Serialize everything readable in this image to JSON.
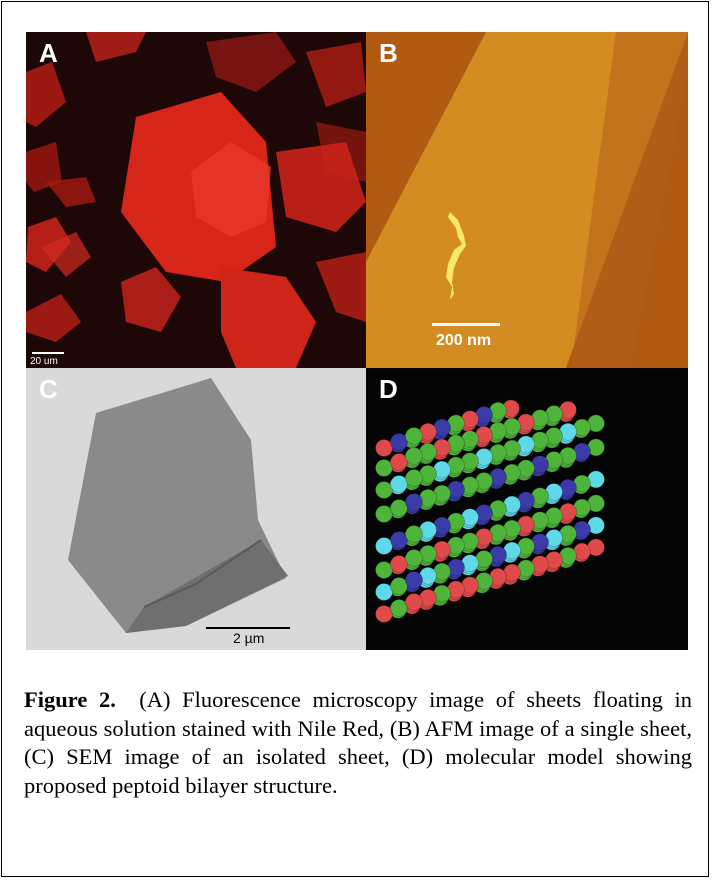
{
  "panels": {
    "a": {
      "letter": "A",
      "scale_label": "20 um"
    },
    "b": {
      "letter": "B",
      "scale_label": "200 nm"
    },
    "c": {
      "letter": "C",
      "scale_label": "2 µm"
    },
    "d": {
      "letter": "D"
    }
  },
  "caption": {
    "label": "Figure 2.",
    "text": "(A) Fluorescence microscopy image of sheets floating in aqueous solution stained with Nile Red, (B) AFM image of a single sheet, (C) SEM image of an isolated sheet, (D) molecular model showing proposed peptoid bilayer structure."
  },
  "colors": {
    "frame": "#000000",
    "fluorescence_bg": "#1e0807",
    "fluorescence_sheet": "#d8251a",
    "afm_bg": "#b05a12",
    "afm_sheet": "#d38c22",
    "sem_bg": "#d9d9d9",
    "sem_sheet": "#8a8a8a",
    "model_bg": "#050505",
    "atom_red": "#e04a4a",
    "atom_green": "#4fb53a",
    "atom_blue": "#3a3aa8",
    "atom_cyan": "#5fd8e8"
  }
}
